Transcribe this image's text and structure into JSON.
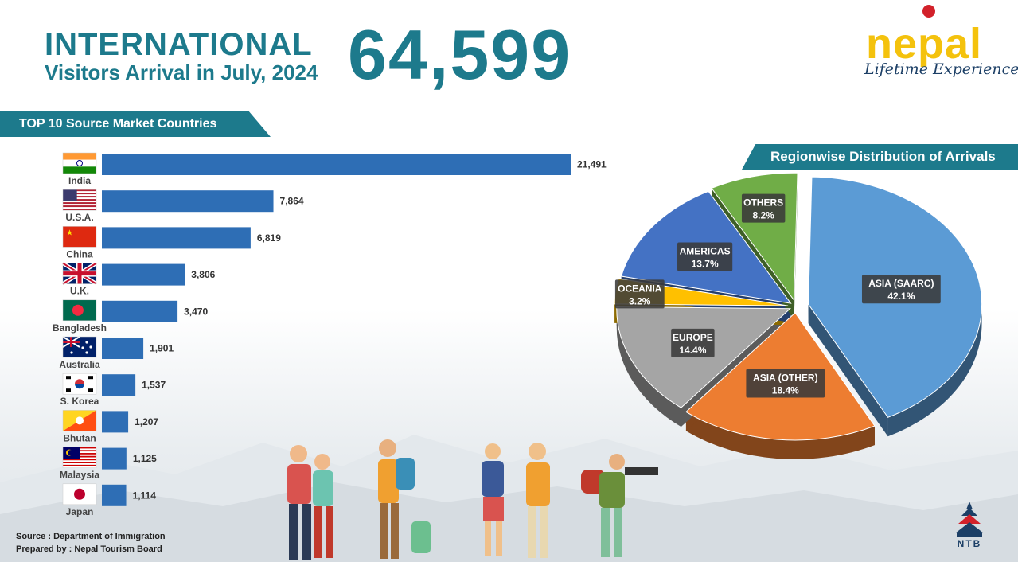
{
  "header": {
    "title_line1": "INTERNATIONAL",
    "title_line2": "Visitors Arrival in July, 2024",
    "total": "64,599"
  },
  "brand": {
    "name": "nepal",
    "tagline": "Lifetime Experiences!"
  },
  "footer": {
    "source": "Source : Department of Immigration",
    "prepared_by": "Prepared by : Nepal Tourism Board",
    "ntb_logo_text": "NTB"
  },
  "colors": {
    "teal": "#1d7a8c",
    "bar": "#2e6eb5",
    "brand_yellow": "#f4c20d"
  },
  "chart_data": [
    {
      "type": "bar",
      "title": "TOP 10 Source Market Countries",
      "orientation": "horizontal",
      "categories": [
        "India",
        "U.S.A.",
        "China",
        "U.K.",
        "Bangladesh",
        "Australia",
        "S. Korea",
        "Bhutan",
        "Malaysia",
        "Japan"
      ],
      "values": [
        21491,
        7864,
        6819,
        3806,
        3470,
        1901,
        1537,
        1207,
        1125,
        1114
      ],
      "value_labels": [
        "21,491",
        "7,864",
        "6,819",
        "3,806",
        "3,470",
        "1,901",
        "1,537",
        "1,207",
        "1,125",
        "1,114"
      ],
      "flag_icons": [
        "flag-india-icon",
        "flag-usa-icon",
        "flag-china-icon",
        "flag-uk-icon",
        "flag-bangladesh-icon",
        "flag-australia-icon",
        "flag-south-korea-icon",
        "flag-bhutan-icon",
        "flag-malaysia-icon",
        "flag-japan-icon"
      ],
      "color": "#2e6eb5",
      "xlim": [
        0,
        21491
      ]
    },
    {
      "type": "pie",
      "title": "Regionwise Distribution of Arrivals",
      "style": "3d-exploded",
      "slices": [
        {
          "label": "ASIA (SAARC)",
          "value": 42.1,
          "display": "42.1%",
          "color": "#5b9bd5"
        },
        {
          "label": "ASIA (OTHER)",
          "value": 18.4,
          "display": "18.4%",
          "color": "#ed7d31"
        },
        {
          "label": "EUROPE",
          "value": 14.4,
          "display": "14.4%",
          "color": "#a5a5a5"
        },
        {
          "label": "OCEANIA",
          "value": 3.2,
          "display": "3.2%",
          "color": "#ffc000"
        },
        {
          "label": "AMERICAS",
          "value": 13.7,
          "display": "13.7%",
          "color": "#4472c4"
        },
        {
          "label": "OTHERS",
          "value": 8.2,
          "display": "8.2%",
          "color": "#70ad47"
        }
      ]
    }
  ]
}
